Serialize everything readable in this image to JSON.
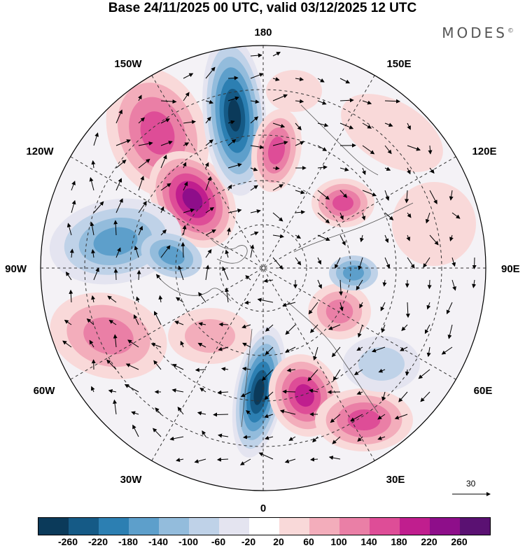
{
  "title": "Base 24/11/2025 00 UTC, valid 03/12/2025 12 UTC",
  "brand": "MODES",
  "brand_mark": "©",
  "longitude_labels": {
    "top": "180",
    "bottom": "0",
    "left": "90W",
    "right": "90E",
    "upper_left_1": "150W",
    "upper_left_2": "120W",
    "lower_left_1": "60W",
    "lower_left_2": "30W",
    "upper_right_1": "150E",
    "upper_right_2": "120E",
    "lower_right_1": "60E",
    "lower_right_2": "30E"
  },
  "reference_vector": {
    "label": "30"
  },
  "colorbar": {
    "colors": [
      "#0b3a5a",
      "#155a86",
      "#2c7fb2",
      "#5d9fcb",
      "#93bcdc",
      "#bfd2e8",
      "#e4e4f0",
      "#ffffff",
      "#f9d9d9",
      "#f3adbb",
      "#ea7fa6",
      "#de4d97",
      "#c01e8e",
      "#8e0e8a",
      "#5a1172"
    ],
    "tick_labels": [
      "-260",
      "-220",
      "-180",
      "-140",
      "-100",
      "-60",
      "-20",
      "20",
      "60",
      "100",
      "140",
      "180",
      "220",
      "260"
    ]
  },
  "chart_data": {
    "type": "polar-stereographic anomaly map",
    "projection": "north polar stereographic, 0° at bottom, 180 at top",
    "field": "shaded anomaly with overlaid wind vectors",
    "color_levels": [
      -260,
      -220,
      -180,
      -140,
      -100,
      -60,
      -20,
      20,
      60,
      100,
      140,
      180,
      220,
      260
    ],
    "reference_vector_value": 30,
    "anomaly_centers": [
      {
        "sign": "positive",
        "region": "Gulf of Alaska / NE Pacific (150W)",
        "value_class": ">=220"
      },
      {
        "sign": "positive",
        "region": "Western Canada (110W)",
        "value_class": ">=220"
      },
      {
        "sign": "negative",
        "region": "Bering Strait / dateline",
        "value_class": "<=-220"
      },
      {
        "sign": "positive",
        "region": "East Siberian Sea (165E)",
        "value_class": "140-180"
      },
      {
        "sign": "positive",
        "region": "Central Siberia (120E)",
        "value_class": "140-180"
      },
      {
        "sign": "negative",
        "region": "Hudson Bay / Canadian Arctic (90W)",
        "value_class": "-180 to -140"
      },
      {
        "sign": "negative",
        "region": "North Atlantic / Greenland Sea (0)",
        "value_class": "<=-220"
      },
      {
        "sign": "positive",
        "region": "Scandinavia / Barents Sea (30E)",
        "value_class": ">=220"
      },
      {
        "sign": "positive",
        "region": "Eastern Europe / Black Sea (40E)",
        "value_class": "140-180"
      },
      {
        "sign": "positive",
        "region": "Kara Sea (70E)",
        "value_class": "140-180"
      },
      {
        "sign": "positive",
        "region": "Western Atlantic (60W)",
        "value_class": "100-140"
      }
    ]
  }
}
